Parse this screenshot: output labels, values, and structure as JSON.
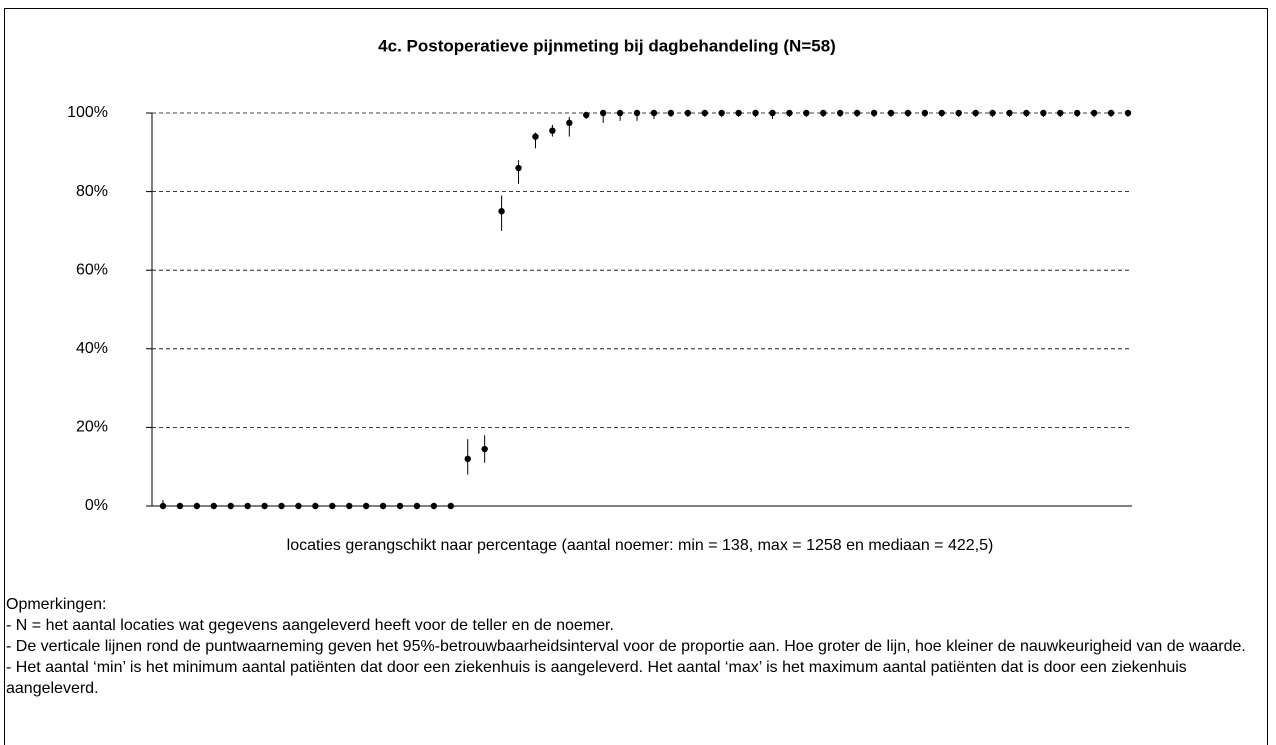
{
  "chart_data": {
    "type": "errorbar",
    "title": "4c. Postoperatieve pijnmeting bij dagbehandeling (N=58)",
    "x_label": "locaties gerangschikt naar percentage (aantal noemer: min = 138, max = 1258 en mediaan = 422,5)",
    "values": [
      0,
      0,
      0,
      0,
      0,
      0,
      0,
      0,
      0,
      0,
      0,
      0,
      0,
      0,
      0,
      0,
      0,
      0,
      12,
      14.5,
      75,
      86,
      94,
      95.5,
      97.5,
      99.5,
      100,
      100,
      100,
      100,
      100,
      100,
      100,
      100,
      100,
      100,
      100,
      100,
      100,
      100,
      100,
      100,
      100,
      100,
      100,
      100,
      100,
      100,
      100,
      100,
      100,
      100,
      100,
      100,
      100,
      100,
      100,
      100
    ],
    "lower": [
      0,
      0,
      0,
      0,
      0,
      0,
      0,
      0,
      0,
      0,
      0,
      0,
      0,
      0,
      0,
      0,
      0,
      0,
      8,
      11,
      70,
      82,
      91,
      94,
      94,
      98.5,
      97.5,
      98,
      98,
      98.5,
      99,
      99,
      99,
      99,
      99,
      99,
      98.5,
      99,
      99,
      99,
      99,
      99,
      99,
      99,
      99,
      99,
      99,
      99,
      99,
      99,
      99,
      99,
      99,
      99,
      99,
      99,
      99,
      99
    ],
    "upper": [
      1.5,
      0.8,
      0.8,
      0.8,
      0.8,
      0.8,
      0.8,
      0.8,
      0.8,
      0.8,
      0.8,
      0.8,
      0.8,
      0.8,
      0.8,
      0.8,
      0.8,
      0.8,
      17,
      18,
      79,
      88,
      95,
      97,
      99,
      100,
      100,
      100,
      100,
      100,
      100,
      100,
      100,
      100,
      100,
      100,
      100,
      100,
      100,
      100,
      100,
      100,
      100,
      100,
      100,
      100,
      100,
      100,
      100,
      100,
      100,
      100,
      100,
      100,
      100,
      100,
      100,
      100
    ],
    "color": "#000000",
    "ylim": [
      0,
      100
    ],
    "yticks": [
      {
        "value": 0,
        "label": "0%"
      },
      {
        "value": 20,
        "label": "20%"
      },
      {
        "value": 40,
        "label": "40%"
      },
      {
        "value": 60,
        "label": "60%"
      },
      {
        "value": 80,
        "label": "80%"
      },
      {
        "value": 100,
        "label": "100%"
      }
    ],
    "grid": true
  },
  "notes": {
    "heading": "Opmerkingen:",
    "lines": [
      "- N = het aantal locaties wat gegevens aangeleverd heeft voor de teller en de noemer.",
      "- De verticale lijnen rond de puntwaarneming geven het 95%-betrouwbaarheidsinterval voor de proportie aan. Hoe groter de lijn, hoe kleiner de nauwkeurigheid van de waarde.",
      "- Het aantal ‘min’ is het minimum aantal patiënten dat door een ziekenhuis is aangeleverd. Het aantal ‘max’ is het maximum aantal patiënten dat is door een ziekenhuis aangeleverd."
    ]
  }
}
